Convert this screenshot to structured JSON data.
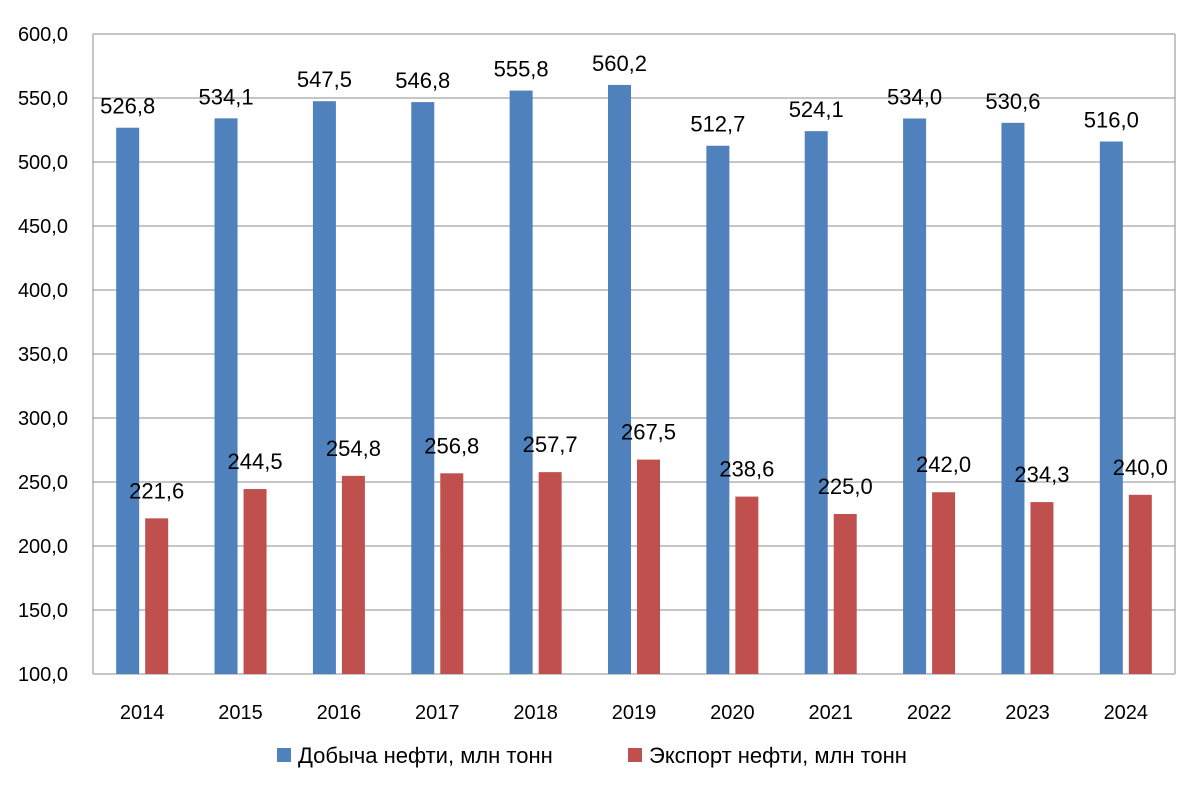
{
  "chart_data": {
    "type": "bar",
    "categories": [
      "2014",
      "2015",
      "2016",
      "2017",
      "2018",
      "2019",
      "2020",
      "2021",
      "2022",
      "2023",
      "2024"
    ],
    "series": [
      {
        "name": "Добыча нефти, млн тонн",
        "color": "#4F81BD",
        "values": [
          526.8,
          534.1,
          547.5,
          546.8,
          555.8,
          560.2,
          512.7,
          524.1,
          534.0,
          530.6,
          516.0
        ],
        "labels": [
          "526,8",
          "534,1",
          "547,5",
          "546,8",
          "555,8",
          "560,2",
          "512,7",
          "524,1",
          "534,0",
          "530,6",
          "516,0"
        ]
      },
      {
        "name": "Экспорт нефти, млн тонн",
        "color": "#C0504D",
        "values": [
          221.6,
          244.5,
          254.8,
          256.8,
          257.7,
          267.5,
          238.6,
          225.0,
          242.0,
          234.3,
          240.0
        ],
        "labels": [
          "221,6",
          "244,5",
          "254,8",
          "256,8",
          "257,7",
          "267,5",
          "238,6",
          "225,0",
          "242,0",
          "234,3",
          "240,0"
        ]
      }
    ],
    "ylim": [
      100,
      600
    ],
    "yticks": [
      100,
      150,
      200,
      250,
      300,
      350,
      400,
      450,
      500,
      550,
      600
    ],
    "ytick_labels": [
      "100,0",
      "150,0",
      "200,0",
      "250,0",
      "300,0",
      "350,0",
      "400,0",
      "450,0",
      "500,0",
      "550,0",
      "600,0"
    ],
    "grid": true,
    "legend_position": "bottom"
  }
}
